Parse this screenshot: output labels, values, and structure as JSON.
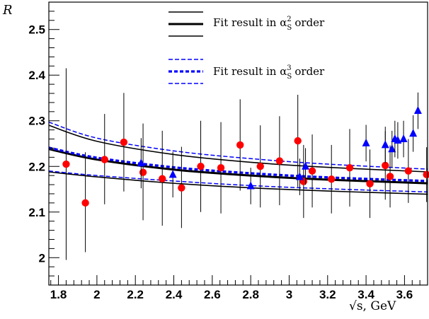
{
  "chart_data": {
    "type": "scatter",
    "ylabel": "R",
    "xlabel": "√s, GeV",
    "xlim": [
      1.75,
      3.72
    ],
    "ylim": [
      1.94,
      2.56
    ],
    "x_ticks": [
      1.8,
      2,
      2.2,
      2.4,
      2.6,
      2.8,
      3,
      3.2,
      3.4,
      3.6
    ],
    "y_ticks": [
      2,
      2.1,
      2.2,
      2.3,
      2.4,
      2.5
    ],
    "x_tick_labels": [
      "1.8",
      "2",
      "2.2",
      "2.4",
      "2.6",
      "2.8",
      "3",
      "3.2",
      "3.4",
      "3.6"
    ],
    "y_tick_labels": [
      "2",
      "2.1",
      "2.2",
      "2.3",
      "2.4",
      "2.5"
    ],
    "grid": false,
    "legend": {
      "placement": "top-right",
      "entries": [
        {
          "label": "Fit result in α_S^2 order",
          "label_main": "Fit result in α",
          "sub": "S",
          "sup": "2",
          "label_tail": " order",
          "style": "solid",
          "color": "#000000"
        },
        {
          "label": "Fit result in α_S^3 order",
          "label_main": "Fit result in α",
          "sub": "S",
          "sup": "3",
          "label_tail": " order",
          "style": "dashed",
          "color": "#0000ff"
        }
      ]
    },
    "series": [
      {
        "marker": "circle",
        "color": "#ff0000",
        "points": [
          {
            "x": 1.84,
            "y": 2.205,
            "lo": 1.995,
            "hi": 2.415
          },
          {
            "x": 1.94,
            "y": 2.12,
            "lo": 2.012,
            "hi": 2.231
          },
          {
            "x": 2.04,
            "y": 2.215,
            "lo": 2.117,
            "hi": 2.315
          },
          {
            "x": 2.14,
            "y": 2.253,
            "lo": 2.145,
            "hi": 2.361
          },
          {
            "x": 2.24,
            "y": 2.187,
            "lo": 2.082,
            "hi": 2.294
          },
          {
            "x": 2.34,
            "y": 2.173,
            "lo": 2.07,
            "hi": 2.278
          },
          {
            "x": 2.44,
            "y": 2.153,
            "lo": 2.065,
            "hi": 2.243
          },
          {
            "x": 2.54,
            "y": 2.2,
            "lo": 2.1,
            "hi": 2.3
          },
          {
            "x": 2.645,
            "y": 2.197,
            "lo": 2.097,
            "hi": 2.297
          },
          {
            "x": 2.745,
            "y": 2.247,
            "lo": 2.147,
            "hi": 2.347
          },
          {
            "x": 2.85,
            "y": 2.2,
            "lo": 2.11,
            "hi": 2.29
          },
          {
            "x": 2.95,
            "y": 2.212,
            "lo": 2.115,
            "hi": 2.31
          },
          {
            "x": 3.045,
            "y": 2.256,
            "lo": 2.155,
            "hi": 2.357
          },
          {
            "x": 3.075,
            "y": 2.167,
            "lo": 2.087,
            "hi": 2.247
          },
          {
            "x": 3.12,
            "y": 2.19,
            "lo": 2.11,
            "hi": 2.27
          },
          {
            "x": 3.22,
            "y": 2.172,
            "lo": 2.097,
            "hi": 2.247
          },
          {
            "x": 3.315,
            "y": 2.197,
            "lo": 2.112,
            "hi": 2.282
          },
          {
            "x": 3.42,
            "y": 2.162,
            "lo": 2.087,
            "hi": 2.237
          },
          {
            "x": 3.5,
            "y": 2.202,
            "lo": 2.127,
            "hi": 2.277
          },
          {
            "x": 3.525,
            "y": 2.178,
            "lo": 2.11,
            "hi": 2.246
          },
          {
            "x": 3.62,
            "y": 2.19,
            "lo": 2.12,
            "hi": 2.26
          },
          {
            "x": 3.715,
            "y": 2.182,
            "lo": 2.122,
            "hi": 2.242
          }
        ]
      },
      {
        "marker": "triangle",
        "color": "#0000ff",
        "points": [
          {
            "x": 2.23,
            "y": 2.207,
            "lo": 2.152,
            "hi": 2.262
          },
          {
            "x": 2.395,
            "y": 2.182,
            "lo": 2.132,
            "hi": 2.232
          },
          {
            "x": 2.8,
            "y": 2.157,
            "lo": 2.117,
            "hi": 2.197
          },
          {
            "x": 3.055,
            "y": 2.177,
            "lo": 2.137,
            "hi": 2.217
          },
          {
            "x": 3.085,
            "y": 2.2,
            "lo": 2.16,
            "hi": 2.24
          },
          {
            "x": 3.4,
            "y": 2.251,
            "lo": 2.211,
            "hi": 2.291
          },
          {
            "x": 3.5,
            "y": 2.247,
            "lo": 2.207,
            "hi": 2.287
          },
          {
            "x": 3.535,
            "y": 2.238,
            "lo": 2.198,
            "hi": 2.278
          },
          {
            "x": 3.55,
            "y": 2.26,
            "lo": 2.22,
            "hi": 2.3
          },
          {
            "x": 3.565,
            "y": 2.257,
            "lo": 2.217,
            "hi": 2.297
          },
          {
            "x": 3.595,
            "y": 2.26,
            "lo": 2.22,
            "hi": 2.3
          },
          {
            "x": 3.645,
            "y": 2.272,
            "lo": 2.232,
            "hi": 2.312
          },
          {
            "x": 3.67,
            "y": 2.322,
            "lo": 2.282,
            "hi": 2.362
          }
        ]
      }
    ],
    "fit_curves": [
      {
        "order": "alpha_s^2",
        "band": "central",
        "color": "#000000",
        "style": "solid",
        "width": 3,
        "x": [
          1.75,
          2.0,
          2.4,
          2.8,
          3.2,
          3.72
        ],
        "y": [
          2.238,
          2.215,
          2.193,
          2.18,
          2.171,
          2.163
        ]
      },
      {
        "order": "alpha_s^2",
        "band": "upper",
        "color": "#000000",
        "style": "solid",
        "width": 1.6,
        "x": [
          1.75,
          2.0,
          2.4,
          2.8,
          3.2,
          3.72
        ],
        "y": [
          2.29,
          2.255,
          2.226,
          2.209,
          2.198,
          2.188
        ]
      },
      {
        "order": "alpha_s^2",
        "band": "lower",
        "color": "#000000",
        "style": "solid",
        "width": 1.6,
        "x": [
          1.75,
          2.0,
          2.4,
          2.8,
          3.2,
          3.72
        ],
        "y": [
          2.188,
          2.177,
          2.163,
          2.153,
          2.146,
          2.139
        ]
      },
      {
        "order": "alpha_s^3",
        "band": "central",
        "color": "#0000ff",
        "style": "dashed",
        "width": 3.2,
        "x": [
          1.75,
          2.0,
          2.4,
          2.8,
          3.2,
          3.72
        ],
        "y": [
          2.241,
          2.219,
          2.198,
          2.185,
          2.176,
          2.168
        ]
      },
      {
        "order": "alpha_s^3",
        "band": "upper",
        "color": "#0000ff",
        "style": "dashed",
        "width": 1.5,
        "x": [
          1.75,
          2.0,
          2.4,
          2.8,
          3.2,
          3.72
        ],
        "y": [
          2.297,
          2.262,
          2.234,
          2.217,
          2.205,
          2.194
        ]
      },
      {
        "order": "alpha_s^3",
        "band": "lower",
        "color": "#0000ff",
        "style": "dashed",
        "width": 1.5,
        "x": [
          1.75,
          2.0,
          2.4,
          2.8,
          3.2,
          3.72
        ],
        "y": [
          2.19,
          2.18,
          2.168,
          2.158,
          2.151,
          2.144
        ]
      }
    ]
  }
}
